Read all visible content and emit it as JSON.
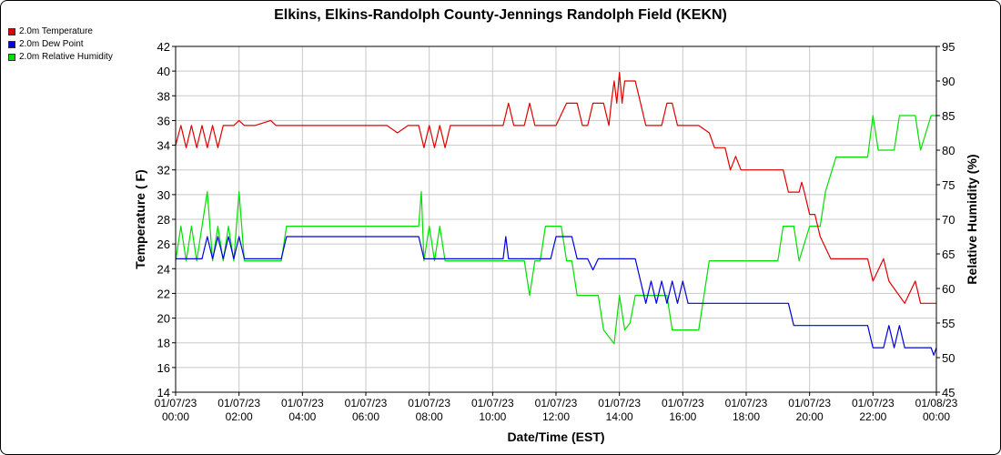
{
  "chart_data": {
    "type": "line",
    "title": "Elkins, Elkins-Randolph County-Jennings Randolph Field (KEKN)",
    "xlabel": "Date/Time (EST)",
    "ylabel_left": "Temperature ( F)",
    "ylabel_right": "Relative Humidity (%)",
    "ylim_left": [
      14,
      42
    ],
    "ylim_right": [
      45,
      95
    ],
    "xlim": [
      "01/07/23 00:00",
      "01/08/23 00:00"
    ],
    "x_ticks": [
      [
        "01/07/23",
        "00:00"
      ],
      [
        "01/07/23",
        "02:00"
      ],
      [
        "01/07/23",
        "04:00"
      ],
      [
        "01/07/23",
        "06:00"
      ],
      [
        "01/07/23",
        "08:00"
      ],
      [
        "01/07/23",
        "10:00"
      ],
      [
        "01/07/23",
        "12:00"
      ],
      [
        "01/07/23",
        "14:00"
      ],
      [
        "01/07/23",
        "16:00"
      ],
      [
        "01/07/23",
        "18:00"
      ],
      [
        "01/07/23",
        "20:00"
      ],
      [
        "01/07/23",
        "22:00"
      ],
      [
        "01/08/23",
        "00:00"
      ]
    ],
    "y_ticks_left": [
      "14",
      "16",
      "18",
      "20",
      "22",
      "24",
      "26",
      "28",
      "30",
      "32",
      "34",
      "36",
      "38",
      "40",
      "42"
    ],
    "y_ticks_right": [
      "45",
      "50",
      "55",
      "60",
      "65",
      "70",
      "75",
      "80",
      "85",
      "90",
      "95"
    ],
    "grid": true,
    "legend_position": "top-left",
    "series": [
      {
        "name": "2.0m Temperature",
        "color": "#e00000",
        "axis": "left",
        "points": [
          [
            "01/07/23 00:00",
            34.0
          ],
          [
            "01/07/23 00:10",
            35.6
          ],
          [
            "01/07/23 00:20",
            33.8
          ],
          [
            "01/07/23 00:30",
            35.6
          ],
          [
            "01/07/23 00:40",
            33.8
          ],
          [
            "01/07/23 00:50",
            35.6
          ],
          [
            "01/07/23 01:00",
            33.8
          ],
          [
            "01/07/23 01:10",
            35.6
          ],
          [
            "01/07/23 01:20",
            33.8
          ],
          [
            "01/07/23 01:30",
            35.6
          ],
          [
            "01/07/23 01:40",
            35.6
          ],
          [
            "01/07/23 01:50",
            35.6
          ],
          [
            "01/07/23 02:00",
            36.0
          ],
          [
            "01/07/23 02:10",
            35.6
          ],
          [
            "01/07/23 02:30",
            35.6
          ],
          [
            "01/07/23 03:00",
            36.0
          ],
          [
            "01/07/23 03:10",
            35.6
          ],
          [
            "01/07/23 04:00",
            35.6
          ],
          [
            "01/07/23 05:00",
            35.6
          ],
          [
            "01/07/23 06:00",
            35.6
          ],
          [
            "01/07/23 06:40",
            35.6
          ],
          [
            "01/07/23 07:00",
            35.0
          ],
          [
            "01/07/23 07:20",
            35.6
          ],
          [
            "01/07/23 07:40",
            35.6
          ],
          [
            "01/07/23 07:50",
            33.8
          ],
          [
            "01/07/23 08:00",
            35.6
          ],
          [
            "01/07/23 08:10",
            33.8
          ],
          [
            "01/07/23 08:20",
            35.6
          ],
          [
            "01/07/23 08:30",
            33.8
          ],
          [
            "01/07/23 08:40",
            35.6
          ],
          [
            "01/07/23 09:00",
            35.6
          ],
          [
            "01/07/23 10:00",
            35.6
          ],
          [
            "01/07/23 10:20",
            35.6
          ],
          [
            "01/07/23 10:30",
            37.4
          ],
          [
            "01/07/23 10:40",
            35.6
          ],
          [
            "01/07/23 11:00",
            35.6
          ],
          [
            "01/07/23 11:10",
            37.4
          ],
          [
            "01/07/23 11:20",
            35.6
          ],
          [
            "01/07/23 12:00",
            35.6
          ],
          [
            "01/07/23 12:20",
            37.4
          ],
          [
            "01/07/23 12:40",
            37.4
          ],
          [
            "01/07/23 12:50",
            35.6
          ],
          [
            "01/07/23 13:00",
            35.6
          ],
          [
            "01/07/23 13:10",
            37.4
          ],
          [
            "01/07/23 13:30",
            37.4
          ],
          [
            "01/07/23 13:40",
            35.6
          ],
          [
            "01/07/23 13:45",
            37.6
          ],
          [
            "01/07/23 13:50",
            39.2
          ],
          [
            "01/07/23 13:55",
            37.4
          ],
          [
            "01/07/23 14:00",
            39.9
          ],
          [
            "01/07/23 14:05",
            37.4
          ],
          [
            "01/07/23 14:10",
            39.2
          ],
          [
            "01/07/23 14:30",
            39.2
          ],
          [
            "01/07/23 14:40",
            37.4
          ],
          [
            "01/07/23 14:50",
            35.6
          ],
          [
            "01/07/23 15:20",
            35.6
          ],
          [
            "01/07/23 15:30",
            37.4
          ],
          [
            "01/07/23 15:40",
            37.4
          ],
          [
            "01/07/23 15:50",
            35.6
          ],
          [
            "01/07/23 16:30",
            35.6
          ],
          [
            "01/07/23 16:50",
            35.0
          ],
          [
            "01/07/23 17:00",
            33.8
          ],
          [
            "01/07/23 17:20",
            33.8
          ],
          [
            "01/07/23 17:30",
            32.0
          ],
          [
            "01/07/23 17:40",
            33.1
          ],
          [
            "01/07/23 17:50",
            32.0
          ],
          [
            "01/07/23 19:10",
            32.0
          ],
          [
            "01/07/23 19:20",
            30.2
          ],
          [
            "01/07/23 19:40",
            30.2
          ],
          [
            "01/07/23 19:45",
            31.0
          ],
          [
            "01/07/23 19:50",
            30.2
          ],
          [
            "01/07/23 20:00",
            28.4
          ],
          [
            "01/07/23 20:10",
            28.4
          ],
          [
            "01/07/23 20:20",
            26.6
          ],
          [
            "01/07/23 20:40",
            24.8
          ],
          [
            "01/07/23 21:50",
            24.8
          ],
          [
            "01/07/23 22:00",
            23.0
          ],
          [
            "01/07/23 22:20",
            24.8
          ],
          [
            "01/07/23 22:30",
            23.0
          ],
          [
            "01/07/23 23:00",
            21.2
          ],
          [
            "01/07/23 23:20",
            23.0
          ],
          [
            "01/07/23 23:30",
            21.2
          ],
          [
            "01/07/23 23:50",
            21.2
          ],
          [
            "01/08/23 00:00",
            21.2
          ]
        ]
      },
      {
        "name": "2.0m Dew Point",
        "color": "#0000e0",
        "axis": "left",
        "points": [
          [
            "01/07/23 00:00",
            24.8
          ],
          [
            "01/07/23 00:50",
            24.8
          ],
          [
            "01/07/23 01:00",
            26.6
          ],
          [
            "01/07/23 01:10",
            24.8
          ],
          [
            "01/07/23 01:20",
            26.6
          ],
          [
            "01/07/23 01:30",
            24.8
          ],
          [
            "01/07/23 01:40",
            26.6
          ],
          [
            "01/07/23 01:50",
            24.8
          ],
          [
            "01/07/23 02:00",
            26.6
          ],
          [
            "01/07/23 02:10",
            24.8
          ],
          [
            "01/07/23 03:20",
            24.8
          ],
          [
            "01/07/23 03:30",
            26.6
          ],
          [
            "01/07/23 07:40",
            26.6
          ],
          [
            "01/07/23 07:50",
            24.8
          ],
          [
            "01/07/23 10:20",
            24.8
          ],
          [
            "01/07/23 10:25",
            26.6
          ],
          [
            "01/07/23 10:30",
            24.8
          ],
          [
            "01/07/23 11:50",
            24.8
          ],
          [
            "01/07/23 12:00",
            26.6
          ],
          [
            "01/07/23 12:30",
            26.6
          ],
          [
            "01/07/23 12:40",
            24.8
          ],
          [
            "01/07/23 13:00",
            24.8
          ],
          [
            "01/07/23 13:10",
            23.9
          ],
          [
            "01/07/23 13:20",
            24.8
          ],
          [
            "01/07/23 14:30",
            24.8
          ],
          [
            "01/07/23 14:40",
            23.0
          ],
          [
            "01/07/23 14:50",
            21.2
          ],
          [
            "01/07/23 15:00",
            23.0
          ],
          [
            "01/07/23 15:10",
            21.2
          ],
          [
            "01/07/23 15:20",
            23.0
          ],
          [
            "01/07/23 15:30",
            21.2
          ],
          [
            "01/07/23 15:40",
            23.0
          ],
          [
            "01/07/23 15:50",
            21.2
          ],
          [
            "01/07/23 16:00",
            23.0
          ],
          [
            "01/07/23 16:10",
            21.2
          ],
          [
            "01/07/23 19:20",
            21.2
          ],
          [
            "01/07/23 19:30",
            19.4
          ],
          [
            "01/07/23 21:50",
            19.4
          ],
          [
            "01/07/23 22:00",
            17.6
          ],
          [
            "01/07/23 22:20",
            17.6
          ],
          [
            "01/07/23 22:30",
            19.4
          ],
          [
            "01/07/23 22:40",
            17.6
          ],
          [
            "01/07/23 22:50",
            19.4
          ],
          [
            "01/07/23 23:00",
            17.6
          ],
          [
            "01/07/23 23:50",
            17.6
          ],
          [
            "01/07/23 23:55",
            17.0
          ],
          [
            "01/08/23 00:00",
            17.6
          ]
        ]
      },
      {
        "name": "2.0m Relative Humidity",
        "color": "#00e000",
        "axis": "right",
        "points": [
          [
            "01/07/23 00:00",
            64
          ],
          [
            "01/07/23 00:10",
            69
          ],
          [
            "01/07/23 00:20",
            64
          ],
          [
            "01/07/23 00:30",
            69
          ],
          [
            "01/07/23 00:40",
            64
          ],
          [
            "01/07/23 00:50",
            69
          ],
          [
            "01/07/23 01:00",
            74
          ],
          [
            "01/07/23 01:10",
            64
          ],
          [
            "01/07/23 01:20",
            69
          ],
          [
            "01/07/23 01:30",
            64
          ],
          [
            "01/07/23 01:40",
            69
          ],
          [
            "01/07/23 01:50",
            64
          ],
          [
            "01/07/23 02:00",
            74
          ],
          [
            "01/07/23 02:10",
            64
          ],
          [
            "01/07/23 03:20",
            64
          ],
          [
            "01/07/23 03:30",
            69
          ],
          [
            "01/07/23 05:00",
            69
          ],
          [
            "01/07/23 07:00",
            69
          ],
          [
            "01/07/23 07:40",
            69
          ],
          [
            "01/07/23 07:45",
            74
          ],
          [
            "01/07/23 07:50",
            64
          ],
          [
            "01/07/23 08:00",
            69
          ],
          [
            "01/07/23 08:10",
            64
          ],
          [
            "01/07/23 08:20",
            69
          ],
          [
            "01/07/23 08:30",
            64
          ],
          [
            "01/07/23 10:00",
            64
          ],
          [
            "01/07/23 11:00",
            64
          ],
          [
            "01/07/23 11:10",
            59
          ],
          [
            "01/07/23 11:20",
            64
          ],
          [
            "01/07/23 11:30",
            64
          ],
          [
            "01/07/23 11:40",
            69
          ],
          [
            "01/07/23 12:10",
            69
          ],
          [
            "01/07/23 12:20",
            64
          ],
          [
            "01/07/23 12:30",
            64
          ],
          [
            "01/07/23 12:40",
            59
          ],
          [
            "01/07/23 13:20",
            59
          ],
          [
            "01/07/23 13:30",
            54
          ],
          [
            "01/07/23 13:50",
            52
          ],
          [
            "01/07/23 14:00",
            59
          ],
          [
            "01/07/23 14:10",
            54
          ],
          [
            "01/07/23 14:20",
            55
          ],
          [
            "01/07/23 14:30",
            59
          ],
          [
            "01/07/23 15:30",
            59
          ],
          [
            "01/07/23 15:40",
            54
          ],
          [
            "01/07/23 16:30",
            54
          ],
          [
            "01/07/23 16:40",
            59
          ],
          [
            "01/07/23 16:50",
            64
          ],
          [
            "01/07/23 17:30",
            64
          ],
          [
            "01/07/23 19:00",
            64
          ],
          [
            "01/07/23 19:10",
            69
          ],
          [
            "01/07/23 19:30",
            69
          ],
          [
            "01/07/23 19:40",
            64
          ],
          [
            "01/07/23 20:00",
            69
          ],
          [
            "01/07/23 20:20",
            69
          ],
          [
            "01/07/23 20:30",
            74
          ],
          [
            "01/07/23 20:50",
            79
          ],
          [
            "01/07/23 21:40",
            79
          ],
          [
            "01/07/23 21:50",
            79
          ],
          [
            "01/07/23 22:00",
            85
          ],
          [
            "01/07/23 22:10",
            80
          ],
          [
            "01/07/23 22:40",
            80
          ],
          [
            "01/07/23 22:50",
            85
          ],
          [
            "01/07/23 23:20",
            85
          ],
          [
            "01/07/23 23:30",
            80
          ],
          [
            "01/07/23 23:50",
            85
          ],
          [
            "01/08/23 00:00",
            85
          ]
        ]
      }
    ]
  }
}
